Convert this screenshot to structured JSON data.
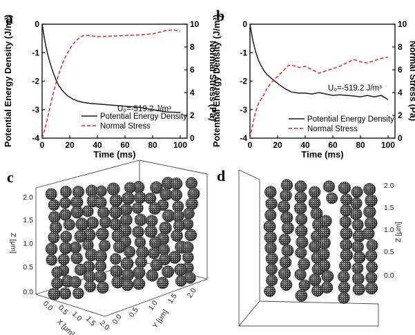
{
  "colors": {
    "energy": "#1a1a1a",
    "stress": "#e8231f",
    "sphere_dark": "#2e2e2e",
    "sphere_light": "#9a9a9a"
  },
  "chart_data": [
    {
      "id": "a",
      "type": "line",
      "panel_label": "a",
      "xlabel": "Time (ms)",
      "ylabel_left": "Potential Energy Density (J/m³)",
      "ylabel_right": "Normal Stress (Pa)",
      "xlim": [
        0,
        105
      ],
      "ylim_left": [
        -4,
        0
      ],
      "ylim_right": [
        0,
        10
      ],
      "xticks": [
        "0",
        "20",
        "40",
        "60",
        "80",
        "100"
      ],
      "yticks_left": [
        "0",
        "-1",
        "-2",
        "-3",
        "-4"
      ],
      "yticks_right": [
        "0",
        "2",
        "4",
        "6",
        "8",
        "10"
      ],
      "annotation": "U₀=-519.2 J/m³",
      "legend": [
        "Potential Energy Density",
        "Normal Stress"
      ],
      "legend_position": "bottom-right",
      "series": [
        {
          "name": "Potential Energy Density",
          "axis": "left",
          "style": "solid",
          "x": [
            0,
            2,
            4,
            6,
            8,
            10,
            12,
            15,
            18,
            22,
            26,
            30,
            35,
            40,
            50,
            60,
            70,
            80,
            90,
            100
          ],
          "y": [
            0,
            -0.6,
            -1.05,
            -1.4,
            -1.7,
            -1.95,
            -2.15,
            -2.35,
            -2.5,
            -2.62,
            -2.7,
            -2.75,
            -2.78,
            -2.8,
            -2.84,
            -2.88,
            -2.92,
            -3.0,
            -3.08,
            -3.1
          ]
        },
        {
          "name": "Normal Stress",
          "axis": "right",
          "style": "dashed",
          "x": [
            0,
            2,
            4,
            6,
            8,
            10,
            12,
            14,
            16,
            18,
            20,
            22,
            25,
            28,
            30,
            35,
            40,
            50,
            60,
            70,
            80,
            90,
            95,
            100
          ],
          "y": [
            0,
            0.8,
            1.8,
            2.9,
            3.9,
            4.8,
            5.6,
            6.3,
            6.9,
            7.4,
            7.8,
            8.2,
            8.6,
            8.9,
            9.0,
            9.0,
            8.9,
            8.95,
            9.0,
            9.05,
            9.15,
            9.45,
            9.5,
            9.4
          ]
        }
      ]
    },
    {
      "id": "b",
      "type": "line",
      "panel_label": "b",
      "xlabel": "Time (ms)",
      "ylabel_left": "Potential Energy Density (J/m³)",
      "ylabel_right": "Normal Stress (Pa)",
      "xlim": [
        0,
        105
      ],
      "ylim_left": [
        -4,
        0
      ],
      "ylim_right": [
        0,
        10
      ],
      "xticks": [
        "0",
        "20",
        "40",
        "60",
        "80",
        "100"
      ],
      "yticks_left": [
        "0",
        "-1",
        "-2",
        "-3",
        "-4"
      ],
      "yticks_right": [
        "0",
        "2",
        "4",
        "6",
        "8",
        "10"
      ],
      "annotation": "U₀=-519.2 J/m³",
      "legend": [
        "Potential Energy Density",
        "Normal Stress"
      ],
      "legend_position": "bottom-right",
      "series": [
        {
          "name": "Potential Energy Density",
          "axis": "left",
          "style": "solid",
          "x": [
            0,
            2,
            4,
            6,
            8,
            10,
            12,
            15,
            18,
            22,
            26,
            30,
            35,
            40,
            45,
            50,
            55,
            60,
            65,
            70,
            75,
            80,
            85,
            90,
            95,
            100
          ],
          "y": [
            0,
            -0.55,
            -0.95,
            -1.25,
            -1.45,
            -1.62,
            -1.75,
            -1.88,
            -2.0,
            -2.15,
            -2.28,
            -2.38,
            -2.42,
            -2.42,
            -2.45,
            -2.4,
            -2.45,
            -2.5,
            -2.48,
            -2.5,
            -2.52,
            -2.55,
            -2.5,
            -2.55,
            -2.5,
            -2.65
          ]
        },
        {
          "name": "Normal Stress",
          "axis": "right",
          "style": "dashed",
          "x": [
            0,
            2,
            4,
            6,
            8,
            10,
            12,
            15,
            18,
            20,
            24,
            28,
            32,
            36,
            40,
            45,
            50,
            55,
            60,
            65,
            70,
            75,
            80,
            85,
            90,
            95,
            100
          ],
          "y": [
            0,
            1.2,
            2.3,
            3.0,
            3.4,
            3.8,
            4.3,
            4.8,
            5.2,
            5.4,
            5.9,
            6.4,
            6.35,
            6.2,
            6.3,
            6.0,
            5.7,
            5.9,
            6.1,
            6.3,
            6.6,
            6.9,
            6.7,
            6.6,
            6.8,
            7.0,
            7.1
          ]
        }
      ]
    }
  ],
  "panel_c": {
    "panel_label": "c",
    "z_label": "Z [μm]",
    "x_label": "X [μm]",
    "y_label": "Y [μm]",
    "z_ticks": [
      "0.0",
      "0.5",
      "1.0",
      "1.5",
      "2.0"
    ],
    "x_ticks": [
      "0.0",
      "0.5",
      "1.0",
      "1.5",
      "2.0"
    ],
    "y_ticks": [
      "0.0",
      "0.5",
      "1.0",
      "1.5",
      "2.0"
    ]
  },
  "panel_d": {
    "panel_label": "d",
    "z_label": "Z [μm]",
    "z_ticks": [
      "2.0",
      "1.5",
      "1.0",
      "0.5",
      "0.0"
    ]
  }
}
